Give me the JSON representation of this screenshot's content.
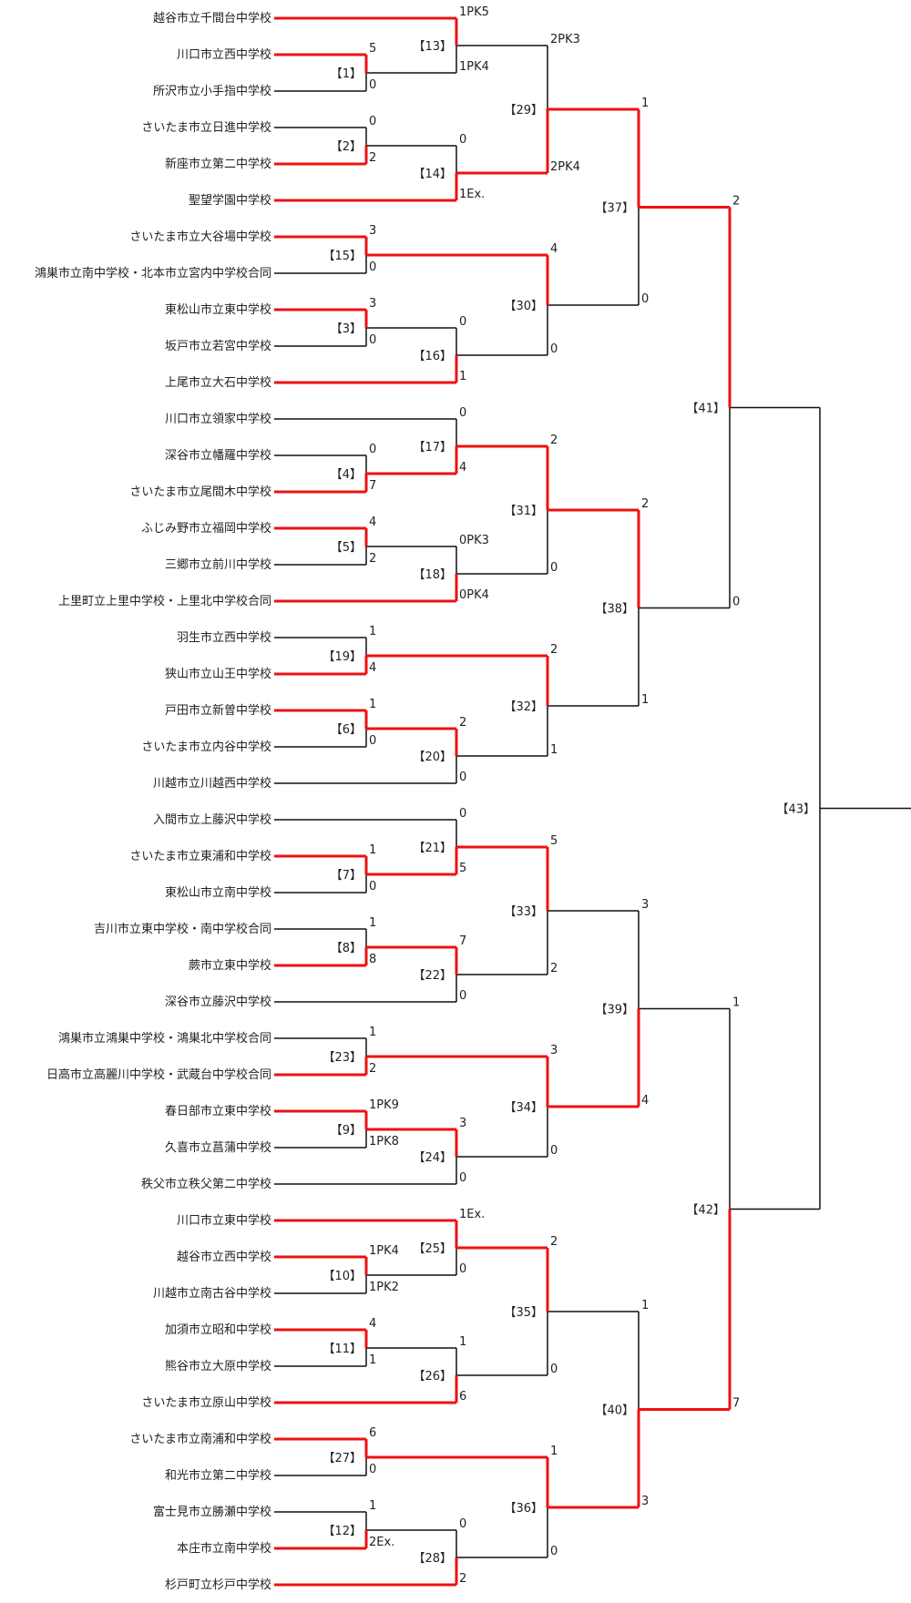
{
  "colors": {
    "winner_line": "#ee1111",
    "line": "#111111",
    "text": "#222222"
  },
  "teams": [
    "越谷市立千間台中学校",
    "川口市立西中学校",
    "所沢市立小手指中学校",
    "さいたま市立日進中学校",
    "新座市立第二中学校",
    "聖望学園中学校",
    "さいたま市立大谷場中学校",
    "鴻巣市立南中学校・北本市立宮内中学校合同",
    "東松山市立東中学校",
    "坂戸市立若宮中学校",
    "上尾市立大石中学校",
    "川口市立領家中学校",
    "深谷市立幡羅中学校",
    "さいたま市立尾間木中学校",
    "ふじみ野市立福岡中学校",
    "三郷市立前川中学校",
    "上里町立上里中学校・上里北中学校合同",
    "羽生市立西中学校",
    "狭山市立山王中学校",
    "戸田市立新曽中学校",
    "さいたま市立内谷中学校",
    "川越市立川越西中学校",
    "入間市立上藤沢中学校",
    "さいたま市立東浦和中学校",
    "東松山市立南中学校",
    "吉川市立東中学校・南中学校合同",
    "蕨市立東中学校",
    "深谷市立藤沢中学校",
    "鴻巣市立鴻巣中学校・鴻巣北中学校合同",
    "日高市立高麗川中学校・武蔵台中学校合同",
    "春日部市立東中学校",
    "久喜市立菖蒲中学校",
    "秩父市立秩父第二中学校",
    "川口市立東中学校",
    "越谷市立西中学校",
    "川越市立南古谷中学校",
    "加須市立昭和中学校",
    "熊谷市立大原中学校",
    "さいたま市立原山中学校",
    "さいたま市立南浦和中学校",
    "和光市立第二中学校",
    "富士見市立勝瀬中学校",
    "本庄市立南中学校",
    "杉戸町立杉戸中学校"
  ],
  "matches": [
    {
      "id": "1",
      "label": "【1】",
      "top": {
        "team": 1
      },
      "bot": {
        "team": 2
      },
      "s_top": "5",
      "s_bot": "0",
      "winner": "top"
    },
    {
      "id": "2",
      "label": "【2】",
      "top": {
        "team": 3
      },
      "bot": {
        "team": 4
      },
      "s_top": "0",
      "s_bot": "2",
      "winner": "bot"
    },
    {
      "id": "3",
      "label": "【3】",
      "top": {
        "team": 8
      },
      "bot": {
        "team": 9
      },
      "s_top": "3",
      "s_bot": "0",
      "winner": "top"
    },
    {
      "id": "4",
      "label": "【4】",
      "top": {
        "team": 12
      },
      "bot": {
        "team": 13
      },
      "s_top": "0",
      "s_bot": "7",
      "winner": "bot"
    },
    {
      "id": "5",
      "label": "【5】",
      "top": {
        "team": 14
      },
      "bot": {
        "team": 15
      },
      "s_top": "4",
      "s_bot": "2",
      "winner": "top"
    },
    {
      "id": "6",
      "label": "【6】",
      "top": {
        "team": 19
      },
      "bot": {
        "team": 20
      },
      "s_top": "1",
      "s_bot": "0",
      "winner": "top"
    },
    {
      "id": "7",
      "label": "【7】",
      "top": {
        "team": 23
      },
      "bot": {
        "team": 24
      },
      "s_top": "1",
      "s_bot": "0",
      "winner": "top"
    },
    {
      "id": "8",
      "label": "【8】",
      "top": {
        "team": 25
      },
      "bot": {
        "team": 26
      },
      "s_top": "1",
      "s_bot": "8",
      "winner": "bot"
    },
    {
      "id": "9",
      "label": "【9】",
      "top": {
        "team": 30
      },
      "bot": {
        "team": 31
      },
      "s_top": "1PK9",
      "s_bot": "1PK8",
      "winner": "top"
    },
    {
      "id": "10",
      "label": "【10】",
      "top": {
        "team": 34
      },
      "bot": {
        "team": 35
      },
      "s_top": "1PK4",
      "s_bot": "1PK2",
      "winner": "top"
    },
    {
      "id": "11",
      "label": "【11】",
      "top": {
        "team": 36
      },
      "bot": {
        "team": 37
      },
      "s_top": "4",
      "s_bot": "1",
      "winner": "top"
    },
    {
      "id": "12",
      "label": "【12】",
      "top": {
        "team": 41
      },
      "bot": {
        "team": 42
      },
      "s_top": "1",
      "s_bot": "2Ex.",
      "winner": "bot"
    },
    {
      "id": "13",
      "label": "【13】",
      "top": {
        "team": 0
      },
      "bot": {
        "match": "1"
      },
      "s_top": "1PK5",
      "s_bot": "1PK4",
      "winner": "top"
    },
    {
      "id": "14",
      "label": "【14】",
      "top": {
        "match": "2"
      },
      "bot": {
        "team": 5
      },
      "s_top": "0",
      "s_bot": "1Ex.",
      "winner": "bot"
    },
    {
      "id": "15",
      "label": "【15】",
      "top": {
        "team": 6
      },
      "bot": {
        "team": 7
      },
      "s_top": "3",
      "s_bot": "0",
      "winner": "top"
    },
    {
      "id": "16",
      "label": "【16】",
      "top": {
        "match": "3"
      },
      "bot": {
        "team": 10
      },
      "s_top": "0",
      "s_bot": "1",
      "winner": "bot"
    },
    {
      "id": "17",
      "label": "【17】",
      "top": {
        "team": 11
      },
      "bot": {
        "match": "4"
      },
      "s_top": "0",
      "s_bot": "4",
      "winner": "bot"
    },
    {
      "id": "18",
      "label": "【18】",
      "top": {
        "match": "5"
      },
      "bot": {
        "team": 16
      },
      "s_top": "0PK3",
      "s_bot": "0PK4",
      "winner": "bot"
    },
    {
      "id": "19",
      "label": "【19】",
      "top": {
        "team": 17
      },
      "bot": {
        "team": 18
      },
      "s_top": "1",
      "s_bot": "4",
      "winner": "bot"
    },
    {
      "id": "20",
      "label": "【20】",
      "top": {
        "match": "6"
      },
      "bot": {
        "team": 21
      },
      "s_top": "2",
      "s_bot": "0",
      "winner": "top"
    },
    {
      "id": "21",
      "label": "【21】",
      "top": {
        "team": 22
      },
      "bot": {
        "match": "7"
      },
      "s_top": "0",
      "s_bot": "5",
      "winner": "bot"
    },
    {
      "id": "22",
      "label": "【22】",
      "top": {
        "match": "8"
      },
      "bot": {
        "team": 27
      },
      "s_top": "7",
      "s_bot": "0",
      "winner": "top"
    },
    {
      "id": "23",
      "label": "【23】",
      "top": {
        "team": 28
      },
      "bot": {
        "team": 29
      },
      "s_top": "1",
      "s_bot": "2",
      "winner": "bot"
    },
    {
      "id": "24",
      "label": "【24】",
      "top": {
        "match": "9"
      },
      "bot": {
        "team": 32
      },
      "s_top": "3",
      "s_bot": "0",
      "winner": "top"
    },
    {
      "id": "25",
      "label": "【25】",
      "top": {
        "team": 33
      },
      "bot": {
        "match": "10"
      },
      "s_top": "1Ex.",
      "s_bot": "0",
      "winner": "top"
    },
    {
      "id": "26",
      "label": "【26】",
      "top": {
        "match": "11"
      },
      "bot": {
        "team": 38
      },
      "s_top": "1",
      "s_bot": "6",
      "winner": "bot"
    },
    {
      "id": "27",
      "label": "【27】",
      "top": {
        "team": 39
      },
      "bot": {
        "team": 40
      },
      "s_top": "6",
      "s_bot": "0",
      "winner": "top"
    },
    {
      "id": "28",
      "label": "【28】",
      "top": {
        "match": "12"
      },
      "bot": {
        "team": 43
      },
      "s_top": "0",
      "s_bot": "2",
      "winner": "bot"
    },
    {
      "id": "29",
      "label": "【29】",
      "top": {
        "match": "13"
      },
      "bot": {
        "match": "14"
      },
      "s_top": "2PK3",
      "s_bot": "2PK4",
      "winner": "bot"
    },
    {
      "id": "30",
      "label": "【30】",
      "top": {
        "match": "15"
      },
      "bot": {
        "match": "16"
      },
      "s_top": "4",
      "s_bot": "0",
      "winner": "top"
    },
    {
      "id": "31",
      "label": "【31】",
      "top": {
        "match": "17"
      },
      "bot": {
        "match": "18"
      },
      "s_top": "2",
      "s_bot": "0",
      "winner": "top"
    },
    {
      "id": "32",
      "label": "【32】",
      "top": {
        "match": "19"
      },
      "bot": {
        "match": "20"
      },
      "s_top": "2",
      "s_bot": "1",
      "winner": "top"
    },
    {
      "id": "33",
      "label": "【33】",
      "top": {
        "match": "21"
      },
      "bot": {
        "match": "22"
      },
      "s_top": "5",
      "s_bot": "2",
      "winner": "top"
    },
    {
      "id": "34",
      "label": "【34】",
      "top": {
        "match": "23"
      },
      "bot": {
        "match": "24"
      },
      "s_top": "3",
      "s_bot": "0",
      "winner": "top"
    },
    {
      "id": "35",
      "label": "【35】",
      "top": {
        "match": "25"
      },
      "bot": {
        "match": "26"
      },
      "s_top": "2",
      "s_bot": "0",
      "winner": "top"
    },
    {
      "id": "36",
      "label": "【36】",
      "top": {
        "match": "27"
      },
      "bot": {
        "match": "28"
      },
      "s_top": "1",
      "s_bot": "0",
      "winner": "top"
    },
    {
      "id": "37",
      "label": "【37】",
      "top": {
        "match": "29"
      },
      "bot": {
        "match": "30"
      },
      "s_top": "1",
      "s_bot": "0",
      "winner": "top"
    },
    {
      "id": "38",
      "label": "【38】",
      "top": {
        "match": "31"
      },
      "bot": {
        "match": "32"
      },
      "s_top": "2",
      "s_bot": "1",
      "winner": "top"
    },
    {
      "id": "39",
      "label": "【39】",
      "top": {
        "match": "33"
      },
      "bot": {
        "match": "34"
      },
      "s_top": "3",
      "s_bot": "4",
      "winner": "bot"
    },
    {
      "id": "40",
      "label": "【40】",
      "top": {
        "match": "35"
      },
      "bot": {
        "match": "36"
      },
      "s_top": "1",
      "s_bot": "3",
      "winner": "bot"
    },
    {
      "id": "41",
      "label": "【41】",
      "top": {
        "match": "37"
      },
      "bot": {
        "match": "38"
      },
      "s_top": "2",
      "s_bot": "0",
      "winner": "top"
    },
    {
      "id": "42",
      "label": "【42】",
      "top": {
        "match": "39"
      },
      "bot": {
        "match": "40"
      },
      "s_top": "1",
      "s_bot": "7",
      "winner": "bot"
    },
    {
      "id": "43",
      "label": "【43】",
      "top": {
        "match": "41"
      },
      "bot": {
        "match": "42"
      },
      "s_top": "",
      "s_bot": "",
      "winner": ""
    }
  ]
}
